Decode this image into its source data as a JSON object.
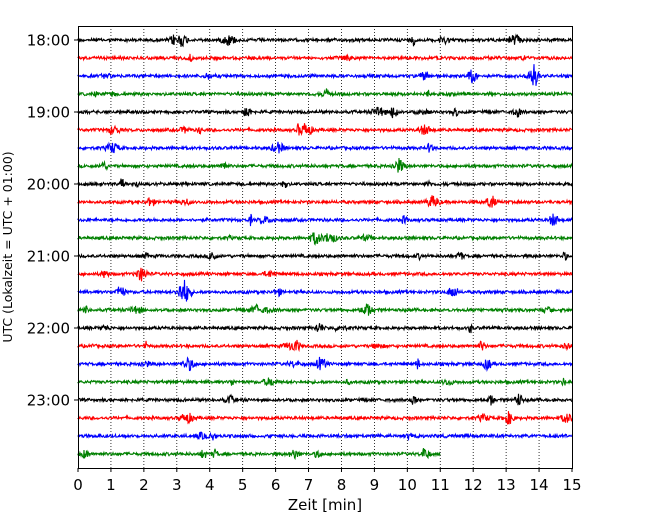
{
  "chart_data": {
    "type": "line",
    "title": "",
    "xlabel": "Zeit  [min]",
    "ylabel": "UTC (Lokalzeit = UTC + 01:00)",
    "xlim": [
      0,
      15
    ],
    "x_ticks": [
      "0",
      "1",
      "2",
      "3",
      "4",
      "5",
      "6",
      "7",
      "8",
      "9",
      "10",
      "11",
      "12",
      "13",
      "14",
      "15"
    ],
    "y_ticks": [
      "18:00",
      "19:00",
      "20:00",
      "21:00",
      "22:00",
      "23:00"
    ],
    "grid": "vertical dotted lines at each minute",
    "trace_colors": [
      "#000000",
      "#ff0000",
      "#0000ff",
      "#008000"
    ],
    "traces": [
      {
        "start": "18:00",
        "duration_min": 15
      },
      {
        "start": "18:15",
        "duration_min": 15
      },
      {
        "start": "18:30",
        "duration_min": 15
      },
      {
        "start": "18:45",
        "duration_min": 15
      },
      {
        "start": "19:00",
        "duration_min": 15
      },
      {
        "start": "19:15",
        "duration_min": 15
      },
      {
        "start": "19:30",
        "duration_min": 15
      },
      {
        "start": "19:45",
        "duration_min": 15
      },
      {
        "start": "20:00",
        "duration_min": 15
      },
      {
        "start": "20:15",
        "duration_min": 15
      },
      {
        "start": "20:30",
        "duration_min": 15
      },
      {
        "start": "20:45",
        "duration_min": 15
      },
      {
        "start": "21:00",
        "duration_min": 15
      },
      {
        "start": "21:15",
        "duration_min": 15
      },
      {
        "start": "21:30",
        "duration_min": 15
      },
      {
        "start": "21:45",
        "duration_min": 15
      },
      {
        "start": "22:00",
        "duration_min": 15
      },
      {
        "start": "22:15",
        "duration_min": 15
      },
      {
        "start": "22:30",
        "duration_min": 15
      },
      {
        "start": "22:45",
        "duration_min": 15
      },
      {
        "start": "23:00",
        "duration_min": 15
      },
      {
        "start": "23:15",
        "duration_min": 15
      },
      {
        "start": "23:30",
        "duration_min": 15
      },
      {
        "start": "23:45",
        "duration_min": 11
      }
    ]
  }
}
